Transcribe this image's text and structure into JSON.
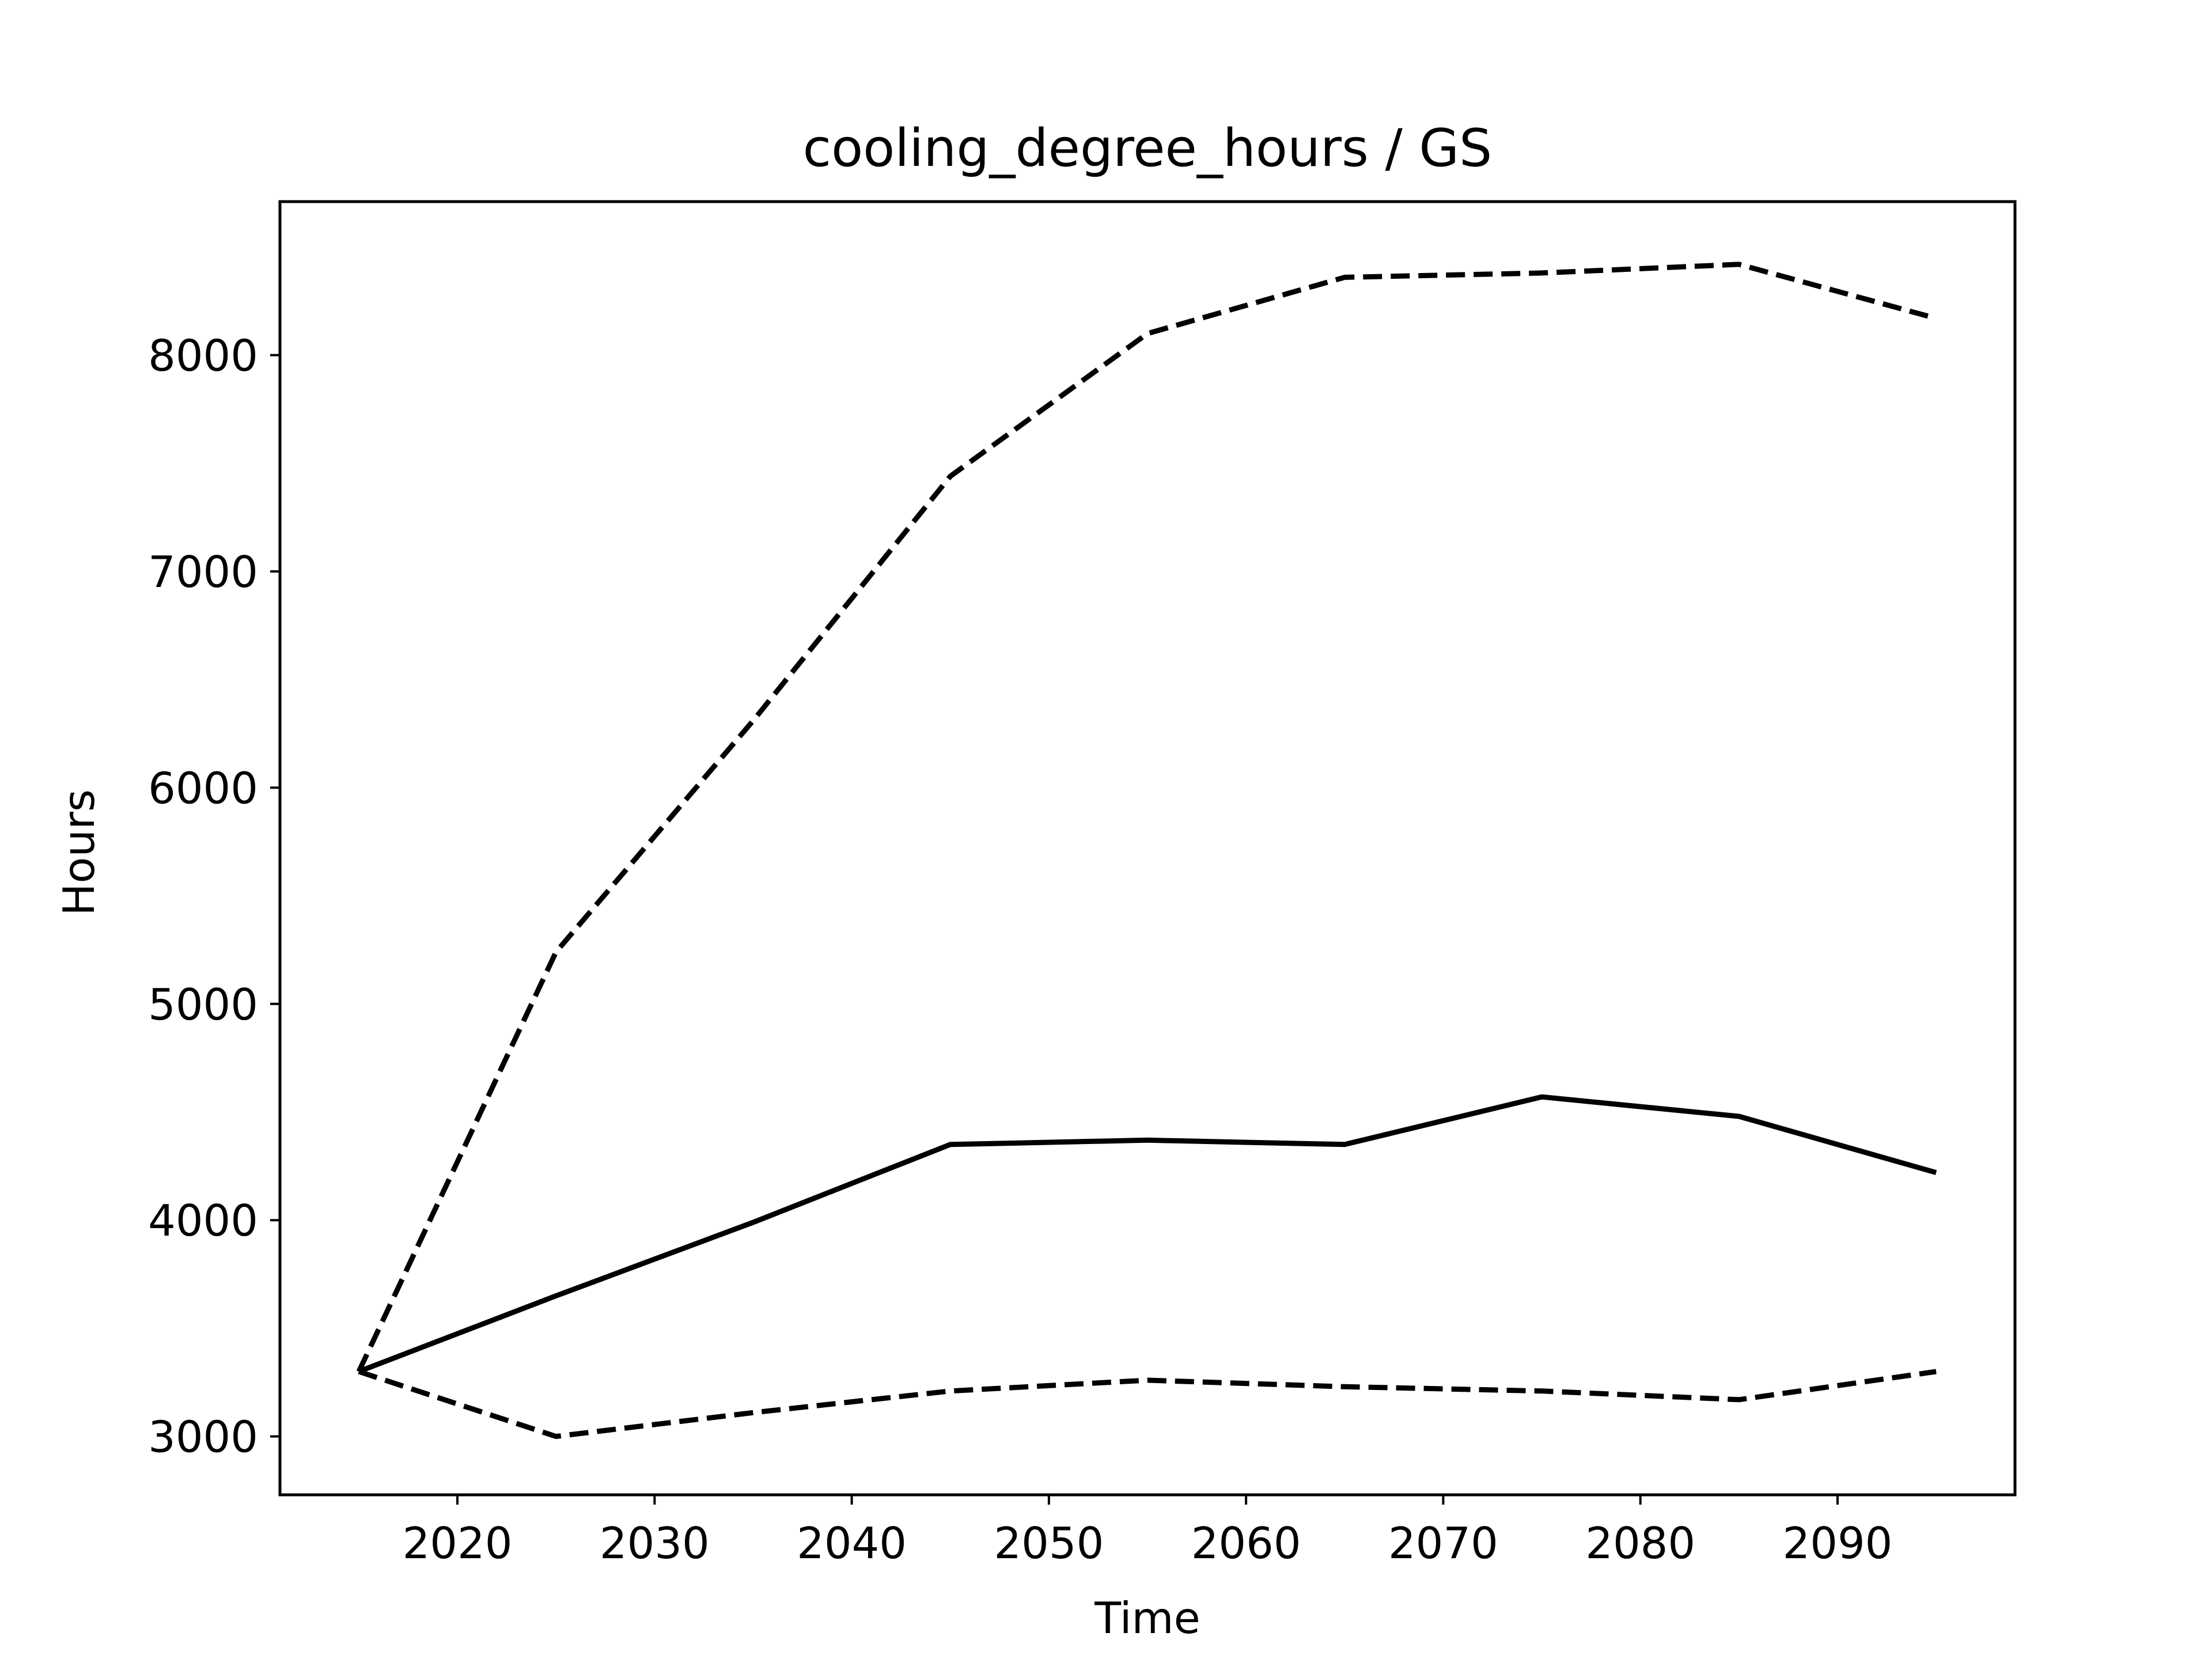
{
  "chart_data": {
    "type": "line",
    "title": "cooling_degree_hours / GS",
    "xlabel": "Time",
    "ylabel": "Hours",
    "xlim": [
      2011,
      2099
    ],
    "ylim": [
      2730,
      8710
    ],
    "xticks": [
      2020,
      2030,
      2040,
      2050,
      2060,
      2070,
      2080,
      2090
    ],
    "yticks": [
      3000,
      4000,
      5000,
      6000,
      7000,
      8000
    ],
    "grid": false,
    "x": [
      2015,
      2025,
      2035,
      2045,
      2055,
      2065,
      2075,
      2085,
      2095
    ],
    "series": [
      {
        "style": "solid",
        "color": "#000000",
        "values": [
          3300,
          3650,
          3990,
          4350,
          4370,
          4350,
          4570,
          4480,
          4220
        ]
      },
      {
        "style": "dashed",
        "color": "#000000",
        "values": [
          3300,
          5240,
          6310,
          7440,
          8100,
          8360,
          8380,
          8420,
          8170
        ]
      },
      {
        "style": "dashed",
        "color": "#000000",
        "values": [
          3300,
          3000,
          3110,
          3210,
          3260,
          3230,
          3210,
          3170,
          3300
        ]
      }
    ]
  }
}
